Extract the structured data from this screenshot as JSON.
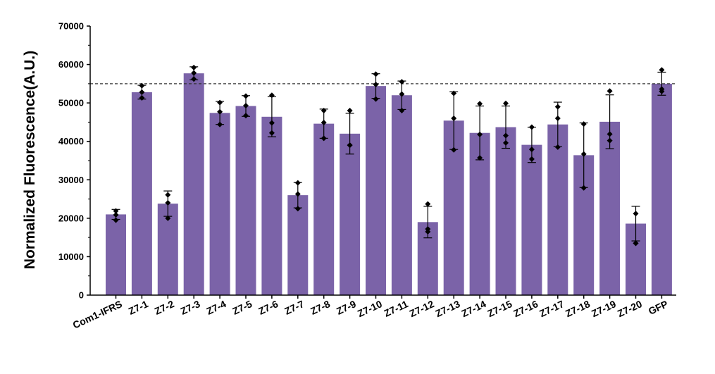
{
  "chart_data": {
    "type": "bar",
    "title": "",
    "xlabel": "",
    "ylabel": "Normalized  Fluorescence(A.U.)",
    "ylim": [
      0,
      70000
    ],
    "y_ticks": [
      0,
      10000,
      20000,
      30000,
      40000,
      50000,
      60000,
      70000
    ],
    "y_tick_labels": [
      "0",
      "10000",
      "20000",
      "30000",
      "40000",
      "50000",
      "60000",
      "70000"
    ],
    "reference_line": 55000,
    "grid": false,
    "legend": "none",
    "bar_color": "#7b63a8",
    "categories": [
      "Com1-IFRS",
      "Z7-1",
      "Z7-2",
      "Z7-3",
      "Z7-4",
      "Z7-5",
      "Z7-6",
      "Z7-7",
      "Z7-8",
      "Z7-9",
      "Z7-10",
      "Z7-11",
      "Z7-12",
      "Z7-13",
      "Z7-14",
      "Z7-15",
      "Z7-16",
      "Z7-17",
      "Z7-18",
      "Z7-19",
      "Z7-20",
      "GFP"
    ],
    "values": [
      21000,
      52800,
      23800,
      57700,
      47400,
      49200,
      46400,
      26000,
      44600,
      42000,
      54400,
      52000,
      19000,
      45400,
      42200,
      43700,
      39100,
      44400,
      36400,
      45100,
      18600,
      55000
    ],
    "error": [
      1300,
      1800,
      3300,
      1700,
      3000,
      2700,
      5200,
      3300,
      3800,
      5300,
      3200,
      3700,
      4100,
      7500,
      7000,
      5500,
      4600,
      5800,
      8400,
      7000,
      4500,
      3000
    ],
    "points": [
      [
        21900,
        20900,
        19500
      ],
      [
        54500,
        52800,
        51300
      ],
      [
        26100,
        24000,
        20000
      ],
      [
        59200,
        57800,
        56200
      ],
      [
        50100,
        47700,
        44400
      ],
      [
        51800,
        49300,
        46700
      ],
      [
        52000,
        44800,
        42200
      ],
      [
        29200,
        26300,
        22500
      ],
      [
        48000,
        44900,
        40800
      ],
      [
        48000,
        39000,
        39000
      ],
      [
        57500,
        54800,
        51000
      ],
      [
        55500,
        52300,
        48000
      ],
      [
        23700,
        17200,
        16500
      ],
      [
        52500,
        46000,
        37800
      ],
      [
        49800,
        41800,
        35700
      ],
      [
        49900,
        41500,
        39600
      ],
      [
        43700,
        37900,
        35400
      ],
      [
        49000,
        46000,
        38500
      ],
      [
        44500,
        36700,
        27900
      ],
      [
        53100,
        41900,
        40200
      ],
      [
        21200,
        13500,
        13500
      ],
      [
        58600,
        53600,
        53000
      ]
    ]
  }
}
